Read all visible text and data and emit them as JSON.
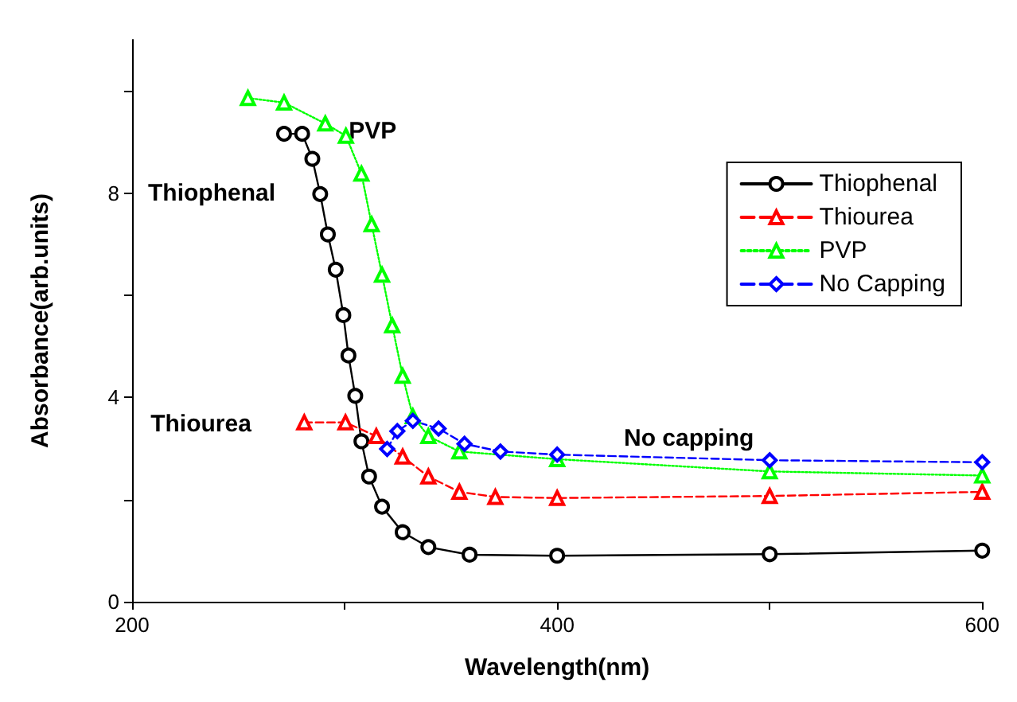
{
  "chart_data": {
    "type": "line",
    "xlabel": "Wavelength(nm)",
    "ylabel": "Absorbance(arb.units)",
    "xlim": [
      200,
      600
    ],
    "xticks": [
      200,
      {
        "value": 300,
        "label": null
      },
      400,
      {
        "value": 500,
        "label": null
      },
      600
    ],
    "ylim": [
      0,
      11
    ],
    "yticks": [
      0,
      {
        "value": 2,
        "label": null
      },
      4,
      {
        "value": 6,
        "label": null
      },
      8,
      {
        "value": 10,
        "label": null
      }
    ],
    "grid": false,
    "legend": "top right",
    "series": [
      {
        "name": "Thiophenal",
        "color": "#000000",
        "marker": "circle",
        "line_style": "solid",
        "x": [
          271.5,
          280,
          284.8,
          288.5,
          292.1,
          295.8,
          299.4,
          301.8,
          305,
          307.9,
          311.5,
          317.6,
          327.3,
          339.4,
          358.8,
          400,
          500,
          600
        ],
        "values": [
          9.16,
          9.16,
          8.67,
          7.98,
          7.19,
          6.5,
          5.61,
          4.82,
          4.03,
          3.14,
          2.45,
          1.86,
          1.36,
          1.07,
          0.92,
          0.9,
          0.93,
          1.0
        ]
      },
      {
        "name": "Thiourea",
        "color": "#ff0000",
        "marker": "triangle",
        "line_style": "dashed",
        "x": [
          281,
          300.4,
          314.9,
          327.3,
          339.4,
          354,
          370.9,
          400,
          500,
          600
        ],
        "values": [
          3.51,
          3.51,
          3.24,
          2.84,
          2.45,
          2.15,
          2.05,
          2.03,
          2.07,
          2.15
        ]
      },
      {
        "name": "PVP",
        "color": "#00ff00",
        "marker": "triangle",
        "line_style": "dotted",
        "x": [
          254.5,
          271.5,
          290.9,
          300.6,
          307.9,
          312.7,
          317.6,
          322.4,
          327.3,
          332.1,
          339.4,
          354,
          400,
          500,
          600
        ],
        "values": [
          9.86,
          9.77,
          9.36,
          9.12,
          8.38,
          7.39,
          6.4,
          5.41,
          4.42,
          3.63,
          3.24,
          2.94,
          2.79,
          2.55,
          2.47
        ]
      },
      {
        "name": "No Capping",
        "color": "#0000ff",
        "marker": "diamond",
        "line_style": "dashed",
        "x": [
          320,
          324.8,
          332.1,
          344.2,
          356.4,
          373.3,
          400,
          500,
          600
        ],
        "values": [
          2.99,
          3.34,
          3.54,
          3.39,
          3.09,
          2.94,
          2.88,
          2.77,
          2.73
        ]
      }
    ],
    "annotations": [
      "Thiophenal",
      "PVP",
      "Thiourea",
      "No capping"
    ]
  }
}
